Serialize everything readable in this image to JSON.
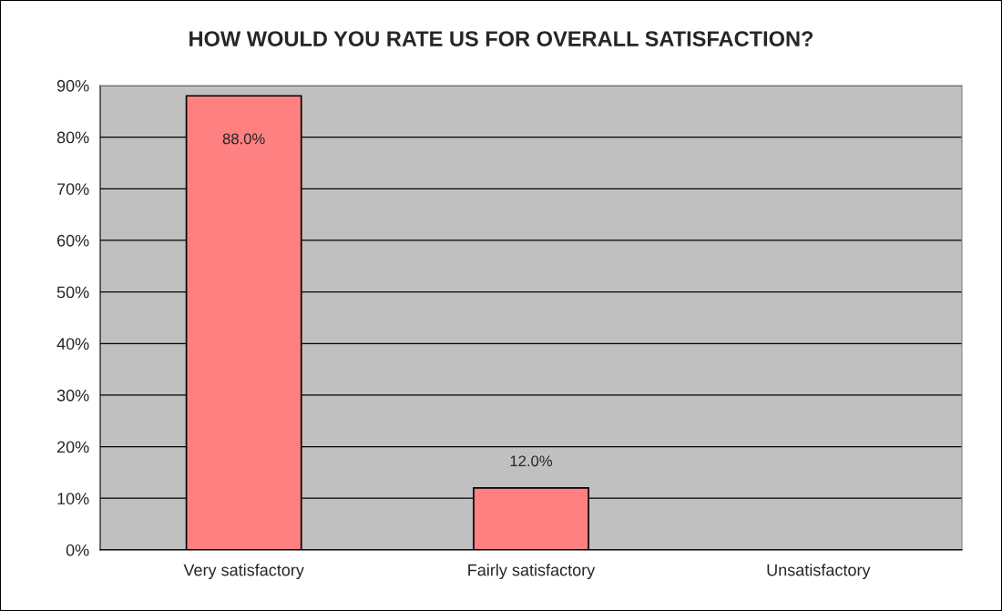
{
  "chart_data": {
    "type": "bar",
    "title": "HOW WOULD YOU RATE US FOR OVERALL SATISFACTION?",
    "categories": [
      "Very satisfactory",
      "Fairly satisfactory",
      "Unsatisfactory"
    ],
    "values": [
      88.0,
      12.0,
      null
    ],
    "value_labels": [
      "88.0%",
      "12.0%",
      null
    ],
    "color": "#ff8080",
    "ylim": [
      0,
      90
    ],
    "yticks": [
      {
        "value": 0,
        "label": "0%"
      },
      {
        "value": 10,
        "label": "10%"
      },
      {
        "value": 20,
        "label": "20%"
      },
      {
        "value": 30,
        "label": "30%"
      },
      {
        "value": 40,
        "label": "40%"
      },
      {
        "value": 50,
        "label": "50%"
      },
      {
        "value": 60,
        "label": "60%"
      },
      {
        "value": 70,
        "label": "70%"
      },
      {
        "value": 80,
        "label": "80%"
      },
      {
        "value": 90,
        "label": "90%"
      }
    ],
    "grid": "y",
    "legend": false
  }
}
